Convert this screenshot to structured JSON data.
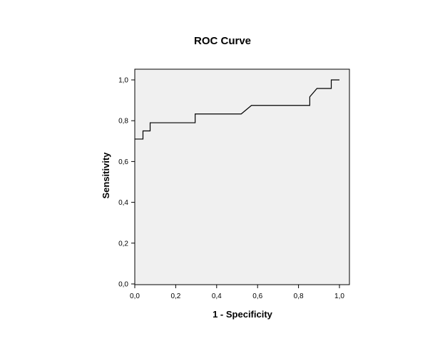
{
  "chart_data": {
    "type": "line",
    "title": "ROC Curve",
    "xlabel": "1 - Specificity",
    "ylabel": "Sensitivity",
    "xlim": [
      0,
      1
    ],
    "ylim": [
      0,
      1
    ],
    "x_ticks": [
      "0,0",
      "0,2",
      "0,4",
      "0,6",
      "0,8",
      "1,0"
    ],
    "y_ticks": [
      "0,0",
      "0,2",
      "0,4",
      "0,6",
      "0,8",
      "1,0"
    ],
    "grid": false,
    "plot_background": "#f0f0f0",
    "line_color": "#000000",
    "series": [
      {
        "x": [
          0.0,
          0.04,
          0.04,
          0.075,
          0.075,
          0.295,
          0.295,
          0.52,
          0.57,
          0.855,
          0.855,
          0.89,
          0.96,
          0.96,
          1.0
        ],
        "y": [
          0.71,
          0.71,
          0.75,
          0.75,
          0.79,
          0.79,
          0.833,
          0.833,
          0.875,
          0.875,
          0.917,
          0.958,
          0.958,
          1.0,
          1.0
        ]
      }
    ]
  }
}
